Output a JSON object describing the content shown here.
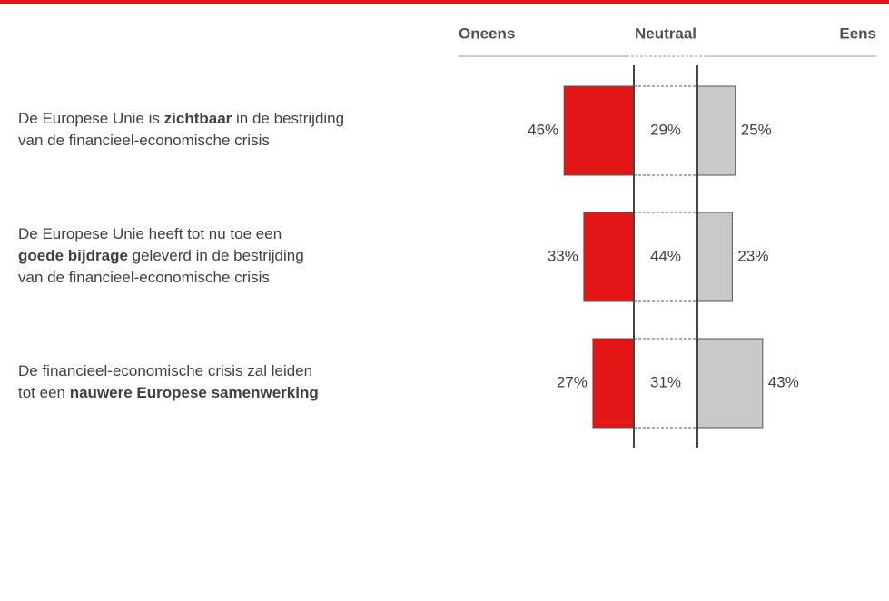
{
  "chart_data": {
    "type": "diverging_bar",
    "statements": [
      [
        [
          {
            "text": "De Europese Unie is "
          },
          {
            "text": "zichtbaar",
            "bold": true
          },
          {
            "text": " in de bestrijding"
          }
        ],
        [
          {
            "text": "van de financieel-economische crisis"
          }
        ]
      ],
      [
        [
          {
            "text": "De Europese Unie heeft tot nu toe een"
          }
        ],
        [
          {
            "text": "goede bijdrage",
            "bold": true
          },
          {
            "text": " geleverd in de bestrijding"
          }
        ],
        [
          {
            "text": "van de financieel-economische crisis"
          }
        ]
      ],
      [
        [
          {
            "text": "De financieel-economische crisis zal leiden"
          }
        ],
        [
          {
            "text": "tot een "
          },
          {
            "text": "nauwere Europese samenwerking",
            "bold": true
          }
        ]
      ]
    ],
    "series": [
      {
        "name": "Oneens",
        "color": "#e31515",
        "values": [
          46,
          33,
          27
        ],
        "value_labels": [
          "46%",
          "33%",
          "27%"
        ]
      },
      {
        "name": "Neutraal",
        "color": "#ffffff",
        "values": [
          29,
          44,
          31
        ],
        "value_labels": [
          "29%",
          "44%",
          "31%"
        ]
      },
      {
        "name": "Eens",
        "color": "#c8c8c8",
        "values": [
          25,
          23,
          43
        ],
        "value_labels": [
          "25%",
          "23%",
          "43%"
        ]
      }
    ]
  }
}
